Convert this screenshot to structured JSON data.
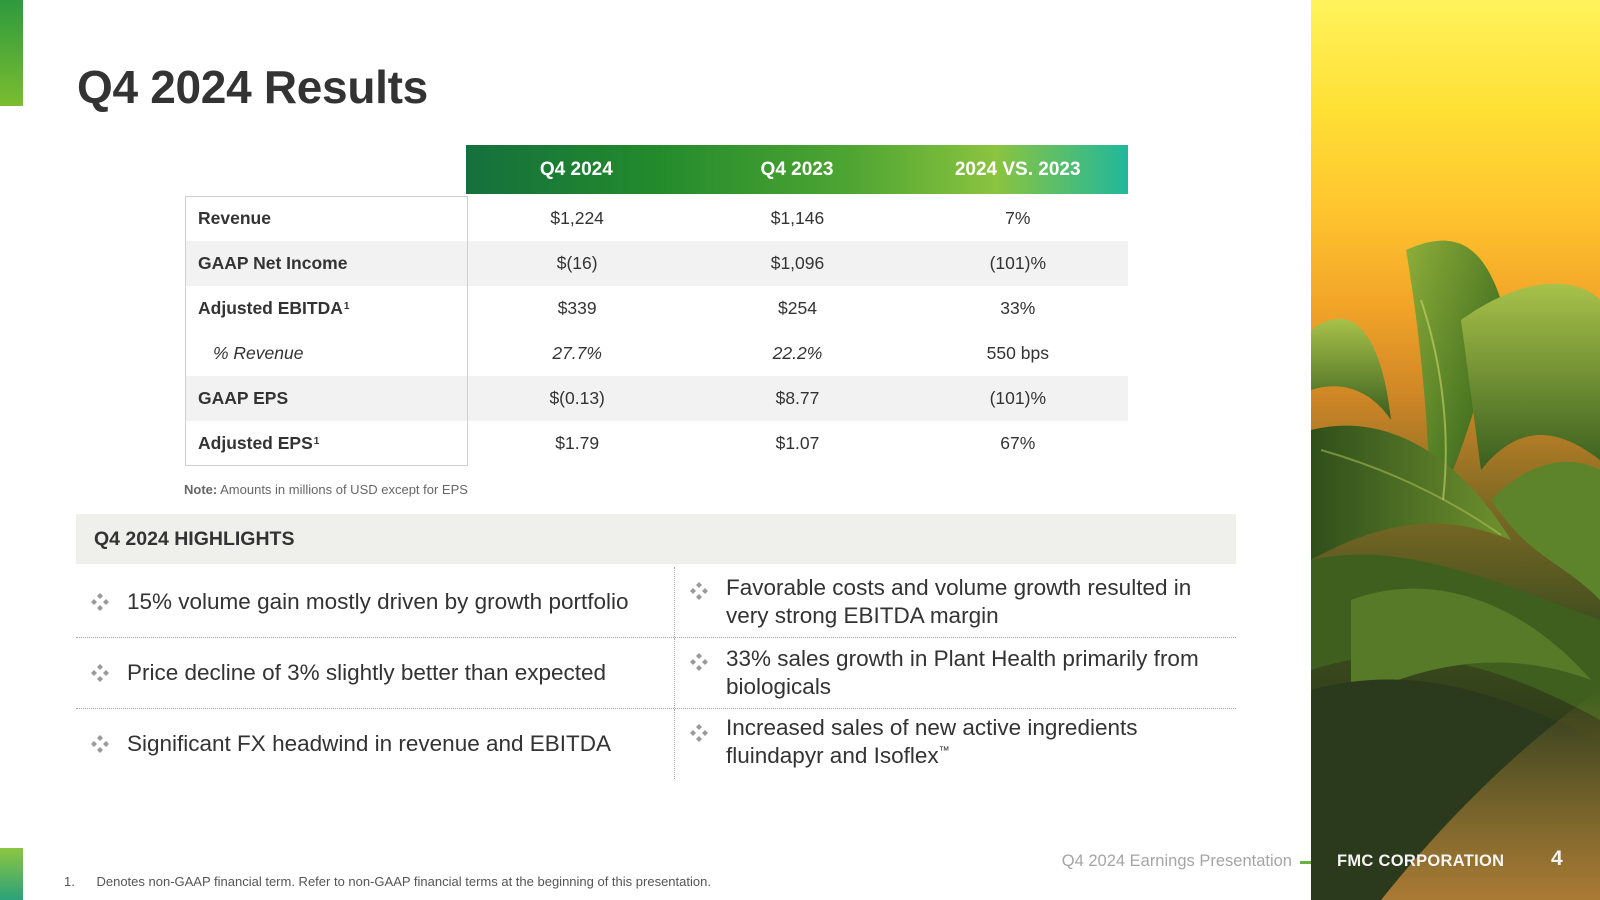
{
  "slide": {
    "title": "Q4 2024 Results"
  },
  "results_table": {
    "headers": [
      "Q4 2024",
      "Q4 2023",
      "2024 VS. 2023"
    ],
    "rows": [
      {
        "label": "Revenue",
        "sup": "",
        "q4_2024": "$1,224",
        "q4_2023": "$1,146",
        "change": "7%"
      },
      {
        "label": "GAAP Net Income",
        "sup": "",
        "q4_2024": "$(16)",
        "q4_2023": "$1,096",
        "change": "(101)%"
      },
      {
        "label": "Adjusted EBITDA",
        "sup": "1",
        "q4_2024": "$339",
        "q4_2023": "$254",
        "change": "33%"
      },
      {
        "label": "% Revenue",
        "sup": "",
        "q4_2024": "27.7%",
        "q4_2023": "22.2%",
        "change": "550 bps"
      },
      {
        "label": "GAAP EPS",
        "sup": "",
        "q4_2024": "$(0.13)",
        "q4_2023": "$8.77",
        "change": "(101)%"
      },
      {
        "label": "Adjusted EPS",
        "sup": "1",
        "q4_2024": "$1.79",
        "q4_2023": "$1.07",
        "change": "67%"
      }
    ],
    "note_label": "Note:",
    "note_text": "Amounts in millions of USD except for EPS"
  },
  "highlights": {
    "title": "Q4 2024 HIGHLIGHTS",
    "left": [
      "15% volume gain mostly driven by growth portfolio",
      "Price decline of 3% slightly better than expected",
      "Significant FX headwind in revenue and EBITDA"
    ],
    "right": [
      "Favorable costs and volume growth resulted in very strong EBITDA margin",
      "33% sales growth in Plant Health primarily from biologicals",
      "Increased sales of new active ingredients fluindapyr and Isoflex"
    ],
    "trademark": "™"
  },
  "footer": {
    "footnote_number": "1.",
    "footnote_text": "Denotes non-GAAP financial term. Refer to non-GAAP financial terms at the beginning of this presentation.",
    "presentation": "Q4 2024 Earnings Presentation",
    "brand": "FMC CORPORATION",
    "page_number": "4"
  },
  "colors": {
    "accent_green": "#6ab33a",
    "header_dark_green": "#15703d",
    "header_teal": "#21b89c",
    "bullet_gray": "#9a9a9a"
  }
}
